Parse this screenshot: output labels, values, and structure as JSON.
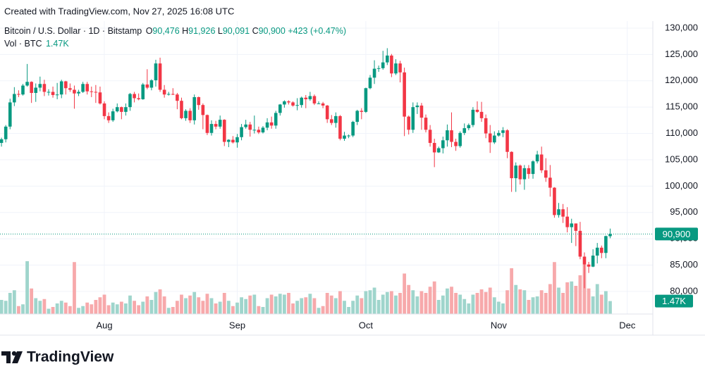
{
  "caption": "Created with TradingView.com, Nov 27, 2025 16:08 UTC",
  "brand": "TradingView",
  "chart_data": {
    "type": "candlestick",
    "symbol": "Bitcoin / U.S. Dollar · 1D · Bitstamp",
    "quote": [
      {
        "key": "O",
        "value": "90,476"
      },
      {
        "key": "H",
        "value": "91,926"
      },
      {
        "key": "L",
        "value": "90,091"
      },
      {
        "key": "C",
        "value": "90,900"
      }
    ],
    "change": "+423 (+0.47%)",
    "volume_title": "Vol · BTC",
    "volume_value": "1.47K",
    "last_price_label": "90,900",
    "up_color": "#089981",
    "down_color": "#f23645",
    "up_volume_color": "#9fd5cc",
    "down_volume_color": "#f7a9ab",
    "grid": true,
    "ylim": [
      75700,
      131340
    ],
    "yticks": [
      {
        "value": 80000,
        "label": "80,000"
      },
      {
        "value": 85000,
        "label": "85,000"
      },
      {
        "value": 90000,
        "label": "90,000"
      },
      {
        "value": 95000,
        "label": "95,000"
      },
      {
        "value": 100000,
        "label": "100,000"
      },
      {
        "value": 105000,
        "label": "105,000"
      },
      {
        "value": 110000,
        "label": "110,000"
      },
      {
        "value": 115000,
        "label": "115,000"
      },
      {
        "value": 120000,
        "label": "120,000"
      },
      {
        "value": 125000,
        "label": "125,000"
      },
      {
        "value": 130000,
        "label": "130,000"
      }
    ],
    "xticks": [
      {
        "value": 24,
        "label": "Aug"
      },
      {
        "value": 55,
        "label": "Sep"
      },
      {
        "value": 85,
        "label": "Oct"
      },
      {
        "value": 116,
        "label": "Nov"
      },
      {
        "value": 146,
        "label": "Dec"
      }
    ],
    "volume_ylim": [
      0,
      8000
    ],
    "ohlc": [
      [
        108200,
        109200,
        107500,
        108900
      ],
      [
        108900,
        111600,
        108300,
        111300
      ],
      [
        111300,
        116600,
        110800,
        115900
      ],
      [
        115900,
        118800,
        115200,
        117500
      ],
      [
        117500,
        118200,
        116900,
        117400
      ],
      [
        117400,
        119400,
        117200,
        119100
      ],
      [
        119100,
        123200,
        118900,
        119800
      ],
      [
        119800,
        119900,
        115800,
        117700
      ],
      [
        117700,
        119500,
        116000,
        118700
      ],
      [
        118700,
        120800,
        118000,
        119400
      ],
      [
        119400,
        120200,
        117100,
        117900
      ],
      [
        117900,
        118400,
        117200,
        117900
      ],
      [
        117900,
        118900,
        116800,
        117300
      ],
      [
        117300,
        119600,
        116500,
        117400
      ],
      [
        117400,
        120200,
        116700,
        119900
      ],
      [
        119900,
        120000,
        117400,
        118600
      ],
      [
        118600,
        119500,
        117900,
        118300
      ],
      [
        118300,
        119100,
        114700,
        117600
      ],
      [
        117600,
        118300,
        117100,
        117900
      ],
      [
        117900,
        119800,
        117700,
        119400
      ],
      [
        119400,
        119800,
        117400,
        118000
      ],
      [
        118000,
        118900,
        116900,
        117900
      ],
      [
        117900,
        119200,
        115800,
        117800
      ],
      [
        117800,
        118900,
        115500,
        115700
      ],
      [
        115700,
        116100,
        112700,
        113300
      ],
      [
        113300,
        114000,
        112000,
        112500
      ],
      [
        112500,
        114700,
        112200,
        114200
      ],
      [
        114200,
        115700,
        114000,
        115000
      ],
      [
        115000,
        115100,
        112700,
        114100
      ],
      [
        114100,
        115700,
        113400,
        115000
      ],
      [
        115000,
        117700,
        114300,
        117500
      ],
      [
        117500,
        117900,
        115900,
        116700
      ],
      [
        116700,
        117600,
        116300,
        116500
      ],
      [
        116500,
        119600,
        116400,
        119300
      ],
      [
        119300,
        122200,
        118400,
        118700
      ],
      [
        118700,
        120300,
        118200,
        120100
      ],
      [
        120100,
        124000,
        118900,
        123300
      ],
      [
        123300,
        124400,
        117900,
        118300
      ],
      [
        118300,
        119200,
        116800,
        117400
      ],
      [
        117400,
        117900,
        117200,
        117500
      ],
      [
        117500,
        118600,
        117300,
        117400
      ],
      [
        117400,
        117700,
        114600,
        116200
      ],
      [
        116200,
        116800,
        112700,
        112900
      ],
      [
        112900,
        114600,
        112400,
        114300
      ],
      [
        114300,
        114800,
        112000,
        112500
      ],
      [
        112500,
        117400,
        111700,
        116900
      ],
      [
        116900,
        117000,
        114500,
        115400
      ],
      [
        115400,
        115700,
        110800,
        113500
      ],
      [
        113500,
        113600,
        109700,
        110100
      ],
      [
        110100,
        112500,
        109600,
        111800
      ],
      [
        111800,
        112400,
        110800,
        111300
      ],
      [
        111300,
        113400,
        110900,
        112600
      ],
      [
        112600,
        112700,
        107600,
        108400
      ],
      [
        108400,
        108900,
        107400,
        108800
      ],
      [
        108800,
        109500,
        108100,
        108300
      ],
      [
        108300,
        109900,
        107300,
        109300
      ],
      [
        109300,
        111800,
        108700,
        111200
      ],
      [
        111200,
        112600,
        110900,
        111700
      ],
      [
        111700,
        112200,
        109400,
        110700
      ],
      [
        110700,
        113400,
        110000,
        110700
      ],
      [
        110700,
        111300,
        109900,
        110200
      ],
      [
        110200,
        111400,
        110000,
        111100
      ],
      [
        111100,
        112900,
        110600,
        112100
      ],
      [
        112100,
        113200,
        110900,
        111500
      ],
      [
        111500,
        114300,
        110900,
        113900
      ],
      [
        113900,
        115600,
        113400,
        115500
      ],
      [
        115500,
        116300,
        114900,
        116100
      ],
      [
        116100,
        116300,
        115500,
        115900
      ],
      [
        115900,
        116100,
        115100,
        115300
      ],
      [
        115300,
        116700,
        114400,
        115400
      ],
      [
        115400,
        117000,
        114900,
        116800
      ],
      [
        116800,
        117300,
        114800,
        116500
      ],
      [
        116500,
        117900,
        116200,
        117100
      ],
      [
        117100,
        117400,
        115400,
        115700
      ],
      [
        115700,
        116100,
        115600,
        115700
      ],
      [
        115700,
        116000,
        114800,
        115300
      ],
      [
        115300,
        115400,
        112000,
        112700
      ],
      [
        112700,
        113500,
        111600,
        112000
      ],
      [
        112000,
        114000,
        111100,
        113300
      ],
      [
        113300,
        113500,
        108700,
        109000
      ],
      [
        109000,
        110300,
        108600,
        109600
      ],
      [
        109600,
        109800,
        109100,
        109600
      ],
      [
        109600,
        112400,
        109300,
        112200
      ],
      [
        112200,
        114500,
        111600,
        114300
      ],
      [
        114300,
        114800,
        112700,
        114100
      ],
      [
        114100,
        118700,
        113900,
        118600
      ],
      [
        118600,
        121100,
        118400,
        120600
      ],
      [
        120600,
        123900,
        119400,
        122300
      ],
      [
        122300,
        122900,
        121700,
        122400
      ],
      [
        122400,
        125700,
        122100,
        123500
      ],
      [
        123500,
        126200,
        123000,
        124800
      ],
      [
        124800,
        125100,
        120700,
        121400
      ],
      [
        121400,
        124100,
        121100,
        123300
      ],
      [
        123300,
        123800,
        119700,
        121600
      ],
      [
        121600,
        122500,
        109500,
        113200
      ],
      [
        113200,
        113400,
        109800,
        110700
      ],
      [
        110700,
        115900,
        110100,
        115000
      ],
      [
        115000,
        115900,
        113700,
        115300
      ],
      [
        115300,
        115800,
        110700,
        113000
      ],
      [
        113000,
        113600,
        110200,
        110700
      ],
      [
        110700,
        111600,
        107500,
        108200
      ],
      [
        108200,
        109000,
        103600,
        106400
      ],
      [
        106400,
        107500,
        106300,
        107200
      ],
      [
        107200,
        109400,
        106200,
        108700
      ],
      [
        108700,
        111700,
        107500,
        110600
      ],
      [
        110600,
        114000,
        107400,
        108400
      ],
      [
        108400,
        109000,
        106700,
        107600
      ],
      [
        107600,
        110400,
        107300,
        110100
      ],
      [
        110100,
        111900,
        109700,
        111000
      ],
      [
        111000,
        111900,
        110600,
        111600
      ],
      [
        111600,
        115000,
        111200,
        114500
      ],
      [
        114500,
        116100,
        113900,
        114100
      ],
      [
        114100,
        116000,
        112200,
        112900
      ],
      [
        112900,
        113600,
        109100,
        110000
      ],
      [
        110000,
        111600,
        106300,
        108300
      ],
      [
        108300,
        110400,
        108000,
        109600
      ],
      [
        109600,
        110600,
        109400,
        110100
      ],
      [
        110100,
        111200,
        109300,
        110600
      ],
      [
        110600,
        110800,
        105300,
        106500
      ],
      [
        106500,
        106600,
        98900,
        101500
      ],
      [
        101500,
        104500,
        98900,
        103900
      ],
      [
        103900,
        104100,
        100300,
        101300
      ],
      [
        101300,
        104000,
        99300,
        103400
      ],
      [
        103400,
        104000,
        101400,
        102300
      ],
      [
        102300,
        104900,
        101400,
        104700
      ],
      [
        104700,
        106700,
        104300,
        106000
      ],
      [
        106000,
        107500,
        102500,
        103000
      ],
      [
        103000,
        105300,
        100800,
        101600
      ],
      [
        101600,
        104000,
        98000,
        99700
      ],
      [
        99700,
        99800,
        94000,
        94500
      ],
      [
        94500,
        96800,
        94000,
        95600
      ],
      [
        95600,
        96600,
        93000,
        94200
      ],
      [
        94200,
        96000,
        91200,
        92200
      ],
      [
        92200,
        93800,
        89200,
        92900
      ],
      [
        92900,
        92900,
        88600,
        91500
      ],
      [
        91500,
        93200,
        86100,
        86600
      ],
      [
        86600,
        87400,
        80600,
        85100
      ],
      [
        85100,
        85600,
        83500,
        84700
      ],
      [
        84700,
        88000,
        84600,
        86800
      ],
      [
        86800,
        89200,
        85300,
        88300
      ],
      [
        88300,
        88700,
        86300,
        87300
      ],
      [
        87300,
        90600,
        86300,
        90500
      ],
      [
        90476,
        91926,
        90091,
        90900
      ]
    ],
    "volume": [
      1600,
      1500,
      2400,
      2700,
      900,
      1100,
      6000,
      2900,
      1800,
      1500,
      1700,
      600,
      800,
      1200,
      1500,
      1300,
      900,
      5900,
      700,
      900,
      1300,
      1100,
      1600,
      1900,
      2200,
      1000,
      1300,
      1100,
      1400,
      1200,
      2100,
      1500,
      1000,
      1400,
      2000,
      1600,
      2500,
      2800,
      2000,
      700,
      800,
      1500,
      2200,
      1800,
      2100,
      2500,
      1900,
      1500,
      2300,
      1800,
      1200,
      1400,
      2400,
      1500,
      900,
      1300,
      1900,
      1700,
      2100,
      2200,
      900,
      800,
      1800,
      2200,
      2000,
      2300,
      2200,
      2400,
      1200,
      1500,
      1800,
      1900,
      2300,
      1800,
      700,
      900,
      2400,
      2100,
      1800,
      2600,
      1500,
      800,
      1500,
      2100,
      1800,
      2600,
      2700,
      3000,
      1600,
      2200,
      2500,
      2600,
      2100,
      2400,
      4600,
      3300,
      2700,
      2000,
      2600,
      2400,
      3100,
      3700,
      1600,
      2100,
      2900,
      3100,
      2400,
      2200,
      1700,
      1200,
      2200,
      2400,
      2800,
      2500,
      3000,
      1900,
      1400,
      1200,
      2700,
      5200,
      3300,
      2800,
      2700,
      1600,
      1900,
      2000,
      2700,
      2400,
      3400,
      5900,
      3000,
      2400,
      3600,
      3700,
      3200,
      4400,
      5600,
      2900,
      2000,
      3400,
      2200,
      2600,
      1470
    ]
  }
}
